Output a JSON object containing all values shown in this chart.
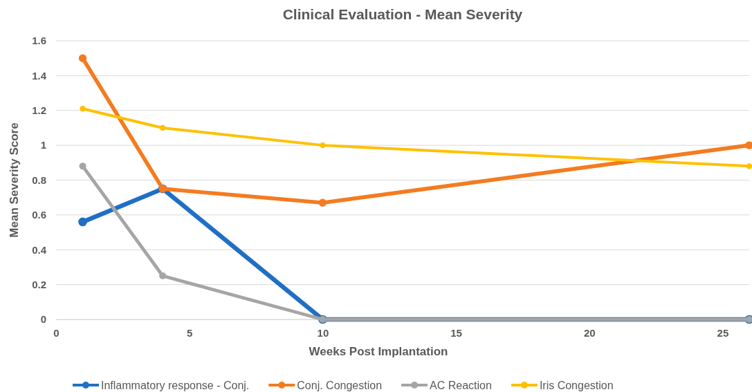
{
  "chart_data": {
    "type": "line",
    "title": "Clinical Evaluation - Mean Severity",
    "xlabel": "Weeks Post Implantation",
    "ylabel": "Mean Severity Score",
    "x": [
      1,
      4,
      10,
      26
    ],
    "series": [
      {
        "name": "Inflammatory response - Conj.",
        "color": "#1f6fc5",
        "values": [
          0.56,
          0.75,
          0,
          0
        ]
      },
      {
        "name": "Conj. Congestion",
        "color": "#f47b20",
        "values": [
          1.5,
          0.75,
          0.67,
          1.0
        ]
      },
      {
        "name": "AC Reaction",
        "color": "#a5a5a5",
        "values": [
          0.88,
          0.25,
          0,
          0
        ]
      },
      {
        "name": "Iris Congestion",
        "color": "#ffc000",
        "values": [
          1.21,
          1.1,
          1.0,
          0.88
        ]
      }
    ],
    "xlim": [
      0,
      26
    ],
    "xticks": [
      0,
      5,
      10,
      15,
      20,
      25
    ],
    "ylim": [
      0,
      1.6
    ],
    "yticks": [
      0,
      0.2,
      0.4,
      0.6,
      0.8,
      1,
      1.2,
      1.4,
      1.6
    ],
    "grid": "y",
    "legend": "bottom",
    "marker": "circle",
    "line_style": "solid"
  }
}
